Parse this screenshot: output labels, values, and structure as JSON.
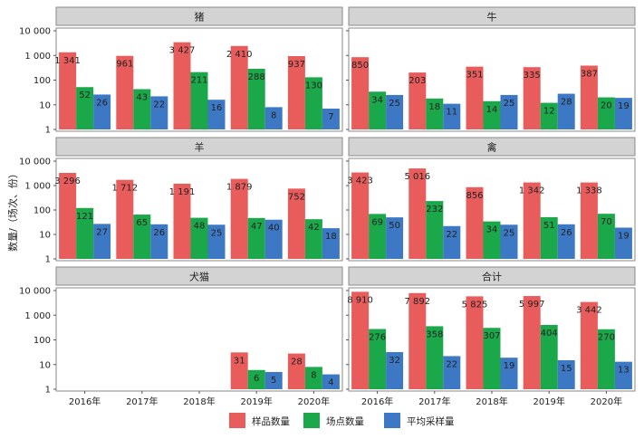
{
  "chart_data": {
    "type": "bar",
    "scale": "log",
    "ylabel": "数量/（场次、份）",
    "yticks": [
      "1",
      "10",
      "100",
      "1 000",
      "10 000"
    ],
    "categories": [
      "2016年",
      "2017年",
      "2018年",
      "2019年",
      "2020年"
    ],
    "legend": [
      {
        "label": "样品数量",
        "color": "#e85c5c"
      },
      {
        "label": "场点数量",
        "color": "#1aa84a"
      },
      {
        "label": "平均采样量",
        "color": "#3d78c4"
      }
    ],
    "panels": [
      {
        "title": "猪",
        "series": [
          {
            "values": [
              1341,
              961,
              3427,
              2410,
              937
            ],
            "labels": [
              "1 341",
              "961",
              "3 427",
              "2 410",
              "937"
            ]
          },
          {
            "values": [
              52,
              43,
              211,
              288,
              130
            ],
            "labels": [
              "52",
              "43",
              "211",
              "288",
              "130"
            ]
          },
          {
            "values": [
              26,
              22,
              16,
              8,
              7
            ],
            "labels": [
              "26",
              "22",
              "16",
              "8",
              "7"
            ]
          }
        ]
      },
      {
        "title": "牛",
        "series": [
          {
            "values": [
              850,
              203,
              351,
              335,
              387
            ],
            "labels": [
              "850",
              "203",
              "351",
              "335",
              "387"
            ]
          },
          {
            "values": [
              34,
              18,
              14,
              12,
              20
            ],
            "labels": [
              "34",
              "18",
              "14",
              "12",
              "20"
            ]
          },
          {
            "values": [
              25,
              11,
              25,
              28,
              19
            ],
            "labels": [
              "25",
              "11",
              "25",
              "28",
              "19"
            ]
          }
        ]
      },
      {
        "title": "羊",
        "series": [
          {
            "values": [
              3296,
              1712,
              1191,
              1879,
              752
            ],
            "labels": [
              "3 296",
              "1 712",
              "1 191",
              "1 879",
              "752"
            ]
          },
          {
            "values": [
              121,
              65,
              48,
              47,
              42
            ],
            "labels": [
              "121",
              "65",
              "48",
              "47",
              "42"
            ]
          },
          {
            "values": [
              27,
              26,
              25,
              40,
              18
            ],
            "labels": [
              "27",
              "26",
              "25",
              "40",
              "18"
            ]
          }
        ]
      },
      {
        "title": "禽",
        "series": [
          {
            "values": [
              3423,
              5016,
              856,
              1342,
              1338
            ],
            "labels": [
              "3 423",
              "5 016",
              "856",
              "1 342",
              "1 338"
            ]
          },
          {
            "values": [
              69,
              232,
              34,
              51,
              70
            ],
            "labels": [
              "69",
              "232",
              "34",
              "51",
              "70"
            ]
          },
          {
            "values": [
              50,
              22,
              25,
              26,
              19
            ],
            "labels": [
              "50",
              "22",
              "25",
              "26",
              "19"
            ]
          }
        ]
      },
      {
        "title": "犬猫",
        "series": [
          {
            "values": [
              null,
              null,
              null,
              31,
              28
            ],
            "labels": [
              "",
              "",
              "",
              "31",
              "28"
            ]
          },
          {
            "values": [
              null,
              null,
              null,
              6,
              8
            ],
            "labels": [
              "",
              "",
              "",
              "6",
              "8"
            ]
          },
          {
            "values": [
              null,
              null,
              null,
              5,
              4
            ],
            "labels": [
              "",
              "",
              "",
              "5",
              "4"
            ]
          }
        ]
      },
      {
        "title": "合计",
        "series": [
          {
            "values": [
              8910,
              7892,
              5825,
              5997,
              3442
            ],
            "labels": [
              "8 910",
              "7 892",
              "5 825",
              "5 997",
              "3 442"
            ]
          },
          {
            "values": [
              276,
              358,
              307,
              404,
              270
            ],
            "labels": [
              "276",
              "358",
              "307",
              "404",
              "270"
            ]
          },
          {
            "values": [
              32,
              22,
              19,
              15,
              13
            ],
            "labels": [
              "32",
              "22",
              "19",
              "15",
              "13"
            ]
          }
        ]
      }
    ]
  }
}
